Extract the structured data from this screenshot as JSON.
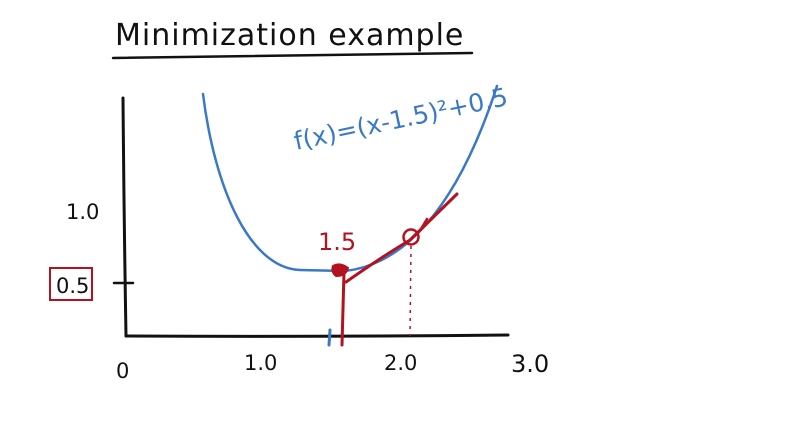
{
  "title": "Minimization example",
  "formula": "f(x)=(x-1.5)²+0.5",
  "x_tick_labels": [
    "0",
    "1.0",
    "2.0",
    "3.0"
  ],
  "y_tick_labels": [
    "1.0",
    "0.5"
  ],
  "minimum_label": "1.5",
  "colors": {
    "ink": "#111111",
    "curve": "#3a78c8",
    "annotation": "#b3121f"
  }
}
